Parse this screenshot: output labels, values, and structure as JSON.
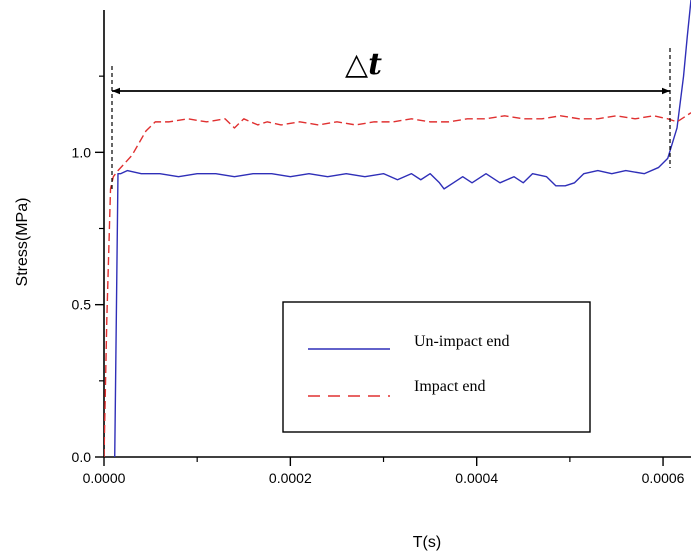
{
  "chart_data": {
    "type": "line",
    "title": "",
    "xlabel": "T(s)",
    "ylabel": "Stress(MPa)",
    "xlim": [
      0,
      0.00063
    ],
    "ylim": [
      0,
      1.5
    ],
    "grid": false,
    "legend_position": "lower-right",
    "x_ticks": [
      "0.0000",
      "0.0002",
      "0.0004",
      "0.0006"
    ],
    "y_ticks": [
      "0.0",
      "0.5",
      "1.0"
    ],
    "annotation": {
      "symbol": "△",
      "var": "t"
    },
    "series": [
      {
        "name": "Un-impact end",
        "color": "#2f2fb8",
        "style": "solid",
        "x": [
          1.15e-05,
          1.5e-05,
          1.8e-05,
          2.5e-05,
          4e-05,
          6e-05,
          8e-05,
          0.0001,
          0.00012,
          0.00014,
          0.00016,
          0.00018,
          0.0002,
          0.00022,
          0.00024,
          0.00026,
          0.00028,
          0.0003,
          0.000315,
          0.00033,
          0.00034,
          0.00035,
          0.00036,
          0.000365,
          0.000375,
          0.000385,
          0.000395,
          0.00041,
          0.000425,
          0.00044,
          0.00045,
          0.00046,
          0.000475,
          0.000485,
          0.000495,
          0.000505,
          0.000515,
          0.00053,
          0.000545,
          0.00056,
          0.00058,
          0.000595,
          0.000605,
          0.000615,
          0.000622,
          0.000626,
          0.00063
        ],
        "y": [
          0,
          0.93,
          0.93,
          0.94,
          0.93,
          0.93,
          0.92,
          0.93,
          0.93,
          0.92,
          0.93,
          0.93,
          0.92,
          0.93,
          0.92,
          0.93,
          0.92,
          0.93,
          0.91,
          0.93,
          0.91,
          0.93,
          0.9,
          0.88,
          0.9,
          0.92,
          0.9,
          0.93,
          0.9,
          0.92,
          0.9,
          0.93,
          0.92,
          0.89,
          0.89,
          0.9,
          0.93,
          0.94,
          0.93,
          0.94,
          0.93,
          0.95,
          0.98,
          1.08,
          1.25,
          1.38,
          1.5
        ]
      },
      {
        "name": "Impact end",
        "color": "#e03030",
        "style": "dashed",
        "x": [
          0.0,
          3e-06,
          7e-06,
          1e-05,
          1.5e-05,
          3e-05,
          4.5e-05,
          5.5e-05,
          7e-05,
          9e-05,
          0.00011,
          0.00013,
          0.00014,
          0.00015,
          0.000165,
          0.000175,
          0.00019,
          0.00021,
          0.00023,
          0.00025,
          0.00027,
          0.00029,
          0.00031,
          0.00033,
          0.00035,
          0.00037,
          0.00039,
          0.00041,
          0.00043,
          0.00045,
          0.00047,
          0.00049,
          0.00051,
          0.00053,
          0.00055,
          0.00057,
          0.00059,
          0.000605,
          0.000615,
          0.000625,
          0.00063
        ],
        "y": [
          0.0,
          0.45,
          0.88,
          0.92,
          0.94,
          0.99,
          1.07,
          1.1,
          1.1,
          1.11,
          1.1,
          1.11,
          1.08,
          1.11,
          1.09,
          1.1,
          1.09,
          1.1,
          1.09,
          1.1,
          1.09,
          1.1,
          1.1,
          1.11,
          1.1,
          1.1,
          1.11,
          1.11,
          1.12,
          1.11,
          1.11,
          1.12,
          1.11,
          1.11,
          1.12,
          1.11,
          1.12,
          1.11,
          1.1,
          1.12,
          1.13
        ]
      }
    ]
  }
}
